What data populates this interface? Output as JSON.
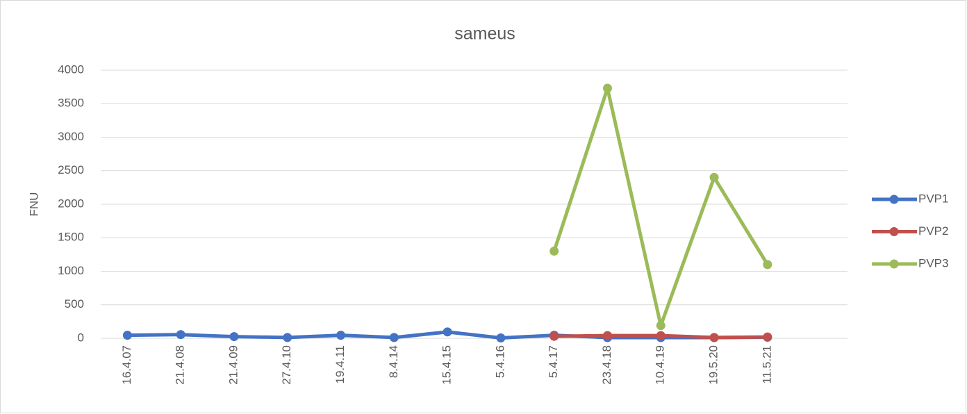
{
  "chart_data": {
    "type": "line",
    "title": "sameus",
    "y_label": "FNU",
    "categories": [
      "16.4.07",
      "21.4.08",
      "21.4.09",
      "27.4.10",
      "19.4.11",
      "8.4.14",
      "15.4.15",
      "5.4.16",
      "5.4.17",
      "23.4.18",
      "10.4.19",
      "19.5.20",
      "11.5.21",
      null
    ],
    "series": [
      {
        "name": "PVP1",
        "color": "#4472c4",
        "values": [
          45,
          55,
          25,
          12,
          45,
          12,
          95,
          5,
          45,
          10,
          10,
          10,
          15,
          null
        ]
      },
      {
        "name": "PVP2",
        "color": "#c0504d",
        "values": [
          null,
          null,
          null,
          null,
          null,
          null,
          null,
          null,
          30,
          40,
          40,
          12,
          20,
          null
        ]
      },
      {
        "name": "PVP3",
        "color": "#9bbb59",
        "values": [
          null,
          null,
          null,
          null,
          null,
          null,
          null,
          null,
          1300,
          3730,
          190,
          2400,
          1100,
          null
        ]
      }
    ],
    "ylim": [
      0,
      4000
    ],
    "yticks": [
      0,
      500,
      1000,
      1500,
      2000,
      2500,
      3000,
      3500,
      4000
    ],
    "grid": true,
    "legend": "right"
  }
}
